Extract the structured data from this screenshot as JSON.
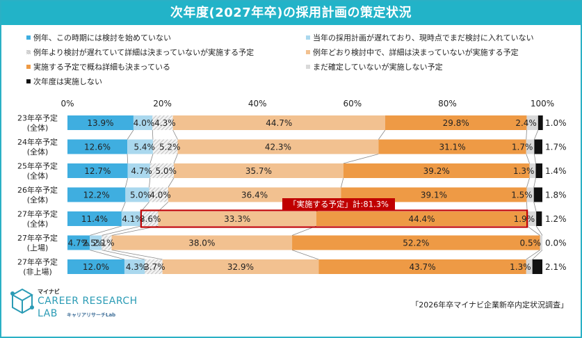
{
  "title": "次年度(2027年卒)の採用計画の策定状況",
  "source": "「2026年卒マイナビ企業新卒内定状況調査」",
  "logo": {
    "sub": "マイナビ",
    "main_line1": "CAREER RESEARCH",
    "main_line2": "LAB",
    "tag": "キャリアリサーチLab"
  },
  "colors": {
    "title_bg": "#22b3c8",
    "not_started": "#3faee0",
    "delayed_not_entered": "#aad8ee",
    "delayed_will_implement": "#e3e3e3",
    "on_schedule": "#f2c190",
    "mostly_decided": "#ee9a45",
    "undecided_no": "#d9d9d9",
    "none": "#111111",
    "highlight": "#c00000"
  },
  "chart_data": {
    "type": "bar",
    "orientation": "horizontal",
    "stacked": true,
    "percent_stacked": true,
    "title": "次年度(2027年卒)の採用計画の策定状況",
    "xlim": [
      0,
      100
    ],
    "xticks": [
      "0%",
      "20%",
      "40%",
      "60%",
      "80%",
      "100%"
    ],
    "categories": [
      [
        "23年卒予定",
        "(全体)"
      ],
      [
        "24年卒予定",
        "(全体)"
      ],
      [
        "25年卒予定",
        "(全体)"
      ],
      [
        "26年卒予定",
        "(全体)"
      ],
      [
        "27年卒予定",
        "(全体)"
      ],
      [
        "27年卒予定",
        "(上場)"
      ],
      [
        "27年卒予定",
        "(非上場)"
      ]
    ],
    "series": [
      {
        "name": "例年、この時期には検討を始めていない",
        "key": "not_started",
        "values": [
          13.9,
          12.6,
          12.7,
          12.2,
          11.4,
          4.7,
          12.0
        ]
      },
      {
        "name": "当年の採用計画が遅れており、現時点でまだ検討に入れていない",
        "key": "delayed_not_entered",
        "values": [
          4.0,
          5.4,
          4.7,
          5.0,
          4.1,
          2.5,
          4.3
        ]
      },
      {
        "name": "例年より検討が遅れていて詳細は決まっていないが実施する予定",
        "key": "delayed_will_implement",
        "values": [
          4.3,
          5.2,
          5.0,
          4.0,
          3.6,
          2.1,
          3.7
        ]
      },
      {
        "name": "例年どおり検討中で、詳細は決まっていないが実施する予定",
        "key": "on_schedule",
        "values": [
          44.7,
          42.3,
          35.7,
          36.4,
          33.3,
          38.0,
          32.9
        ]
      },
      {
        "name": "実施する予定で概ね詳細も決まっている",
        "key": "mostly_decided",
        "values": [
          29.8,
          31.1,
          39.2,
          39.1,
          44.4,
          52.2,
          43.7
        ]
      },
      {
        "name": "まだ確定していないが実施しない予定",
        "key": "undecided_no",
        "values": [
          2.4,
          1.7,
          1.3,
          1.5,
          1.9,
          0.5,
          1.3
        ]
      },
      {
        "name": "次年度は実施しない",
        "key": "none",
        "values": [
          1.0,
          1.7,
          1.4,
          1.8,
          1.2,
          0.0,
          2.1
        ]
      }
    ],
    "annotation": {
      "text": "「実施する予定」計:81.3%",
      "category_index": 4
    },
    "legend_position": "top"
  }
}
